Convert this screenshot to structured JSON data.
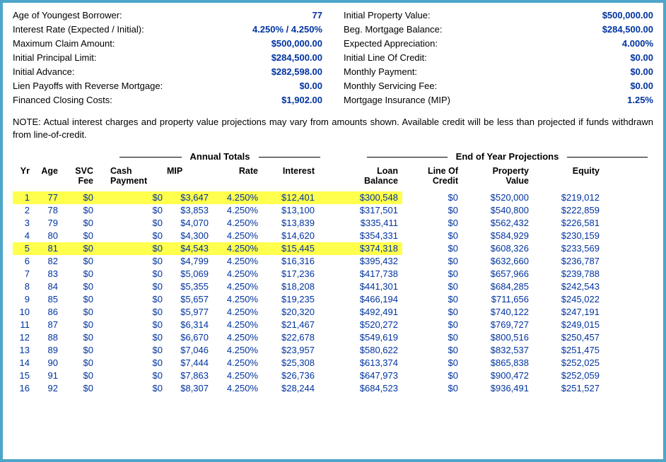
{
  "summary_left": [
    {
      "label": "Age of Youngest Borrower:",
      "value": "77"
    },
    {
      "label": "Interest Rate (Expected / Initial):",
      "value": "4.250%  /  4.250%"
    },
    {
      "label": "Maximum Claim Amount:",
      "value": "$500,000.00"
    },
    {
      "label": "Initial Principal Limit:",
      "value": "$284,500.00"
    },
    {
      "label": "Initial Advance:",
      "value": "$282,598.00"
    },
    {
      "label": "Lien Payoffs with Reverse Mortgage:",
      "value": "$0.00"
    },
    {
      "label": "Financed Closing Costs:",
      "value": "$1,902.00"
    }
  ],
  "summary_right": [
    {
      "label": "Initial Property Value:",
      "value": "$500,000.00"
    },
    {
      "label": "Beg. Mortgage Balance:",
      "value": "$284,500.00"
    },
    {
      "label": "Expected Appreciation:",
      "value": "4.000%"
    },
    {
      "label": "Initial Line Of Credit:",
      "value": "$0.00"
    },
    {
      "label": "Monthly Payment:",
      "value": "$0.00"
    },
    {
      "label": "Monthly Servicing Fee:",
      "value": "$0.00"
    },
    {
      "label": "Mortgage Insurance (MIP)",
      "value": "1.25%"
    }
  ],
  "note": "NOTE: Actual interest charges and property value projections may vary from amounts shown. Available credit will be less than projected if funds withdrawn from line-of-credit.",
  "group_a": "Annual Totals",
  "group_b": "End of Year Projections",
  "headers": {
    "yr": "Yr",
    "age": "Age",
    "svc1": "SVC",
    "svc2": "Fee",
    "cash1": "Cash",
    "cash2": "Payment",
    "mip": "MIP",
    "rate": "Rate",
    "int": "Interest",
    "lb1": "Loan",
    "lb2": "Balance",
    "loc1": "Line Of",
    "loc2": "Credit",
    "pv1": "Property",
    "pv2": "Value",
    "eq": "Equity"
  },
  "highlight_rows": [
    0,
    4
  ],
  "highlight_color": "#ffff4d",
  "value_color": "#0033a0",
  "border_color": "#4da6c9",
  "rows": [
    {
      "yr": "1",
      "age": "77",
      "svc": "$0",
      "cash": "$0",
      "mip": "$3,647",
      "rate": "4.250%",
      "int": "$12,401",
      "lb": "$300,548",
      "loc": "$0",
      "pv": "$520,000",
      "eq": "$219,012"
    },
    {
      "yr": "2",
      "age": "78",
      "svc": "$0",
      "cash": "$0",
      "mip": "$3,853",
      "rate": "4.250%",
      "int": "$13,100",
      "lb": "$317,501",
      "loc": "$0",
      "pv": "$540,800",
      "eq": "$222,859"
    },
    {
      "yr": "3",
      "age": "79",
      "svc": "$0",
      "cash": "$0",
      "mip": "$4,070",
      "rate": "4.250%",
      "int": "$13,839",
      "lb": "$335,411",
      "loc": "$0",
      "pv": "$562,432",
      "eq": "$226,581"
    },
    {
      "yr": "4",
      "age": "80",
      "svc": "$0",
      "cash": "$0",
      "mip": "$4,300",
      "rate": "4.250%",
      "int": "$14,620",
      "lb": "$354,331",
      "loc": "$0",
      "pv": "$584,929",
      "eq": "$230,159"
    },
    {
      "yr": "5",
      "age": "81",
      "svc": "$0",
      "cash": "$0",
      "mip": "$4,543",
      "rate": "4.250%",
      "int": "$15,445",
      "lb": "$374,318",
      "loc": "$0",
      "pv": "$608,326",
      "eq": "$233,569"
    },
    {
      "yr": "6",
      "age": "82",
      "svc": "$0",
      "cash": "$0",
      "mip": "$4,799",
      "rate": "4.250%",
      "int": "$16,316",
      "lb": "$395,432",
      "loc": "$0",
      "pv": "$632,660",
      "eq": "$236,787"
    },
    {
      "yr": "7",
      "age": "83",
      "svc": "$0",
      "cash": "$0",
      "mip": "$5,069",
      "rate": "4.250%",
      "int": "$17,236",
      "lb": "$417,738",
      "loc": "$0",
      "pv": "$657,966",
      "eq": "$239,788"
    },
    {
      "yr": "8",
      "age": "84",
      "svc": "$0",
      "cash": "$0",
      "mip": "$5,355",
      "rate": "4.250%",
      "int": "$18,208",
      "lb": "$441,301",
      "loc": "$0",
      "pv": "$684,285",
      "eq": "$242,543"
    },
    {
      "yr": "9",
      "age": "85",
      "svc": "$0",
      "cash": "$0",
      "mip": "$5,657",
      "rate": "4.250%",
      "int": "$19,235",
      "lb": "$466,194",
      "loc": "$0",
      "pv": "$711,656",
      "eq": "$245,022"
    },
    {
      "yr": "10",
      "age": "86",
      "svc": "$0",
      "cash": "$0",
      "mip": "$5,977",
      "rate": "4.250%",
      "int": "$20,320",
      "lb": "$492,491",
      "loc": "$0",
      "pv": "$740,122",
      "eq": "$247,191"
    },
    {
      "yr": "11",
      "age": "87",
      "svc": "$0",
      "cash": "$0",
      "mip": "$6,314",
      "rate": "4.250%",
      "int": "$21,467",
      "lb": "$520,272",
      "loc": "$0",
      "pv": "$769,727",
      "eq": "$249,015"
    },
    {
      "yr": "12",
      "age": "88",
      "svc": "$0",
      "cash": "$0",
      "mip": "$6,670",
      "rate": "4.250%",
      "int": "$22,678",
      "lb": "$549,619",
      "loc": "$0",
      "pv": "$800,516",
      "eq": "$250,457"
    },
    {
      "yr": "13",
      "age": "89",
      "svc": "$0",
      "cash": "$0",
      "mip": "$7,046",
      "rate": "4.250%",
      "int": "$23,957",
      "lb": "$580,622",
      "loc": "$0",
      "pv": "$832,537",
      "eq": "$251,475"
    },
    {
      "yr": "14",
      "age": "90",
      "svc": "$0",
      "cash": "$0",
      "mip": "$7,444",
      "rate": "4.250%",
      "int": "$25,308",
      "lb": "$613,374",
      "loc": "$0",
      "pv": "$865,838",
      "eq": "$252,025"
    },
    {
      "yr": "15",
      "age": "91",
      "svc": "$0",
      "cash": "$0",
      "mip": "$7,863",
      "rate": "4.250%",
      "int": "$26,736",
      "lb": "$647,973",
      "loc": "$0",
      "pv": "$900,472",
      "eq": "$252,059"
    },
    {
      "yr": "16",
      "age": "92",
      "svc": "$0",
      "cash": "$0",
      "mip": "$8,307",
      "rate": "4.250%",
      "int": "$28,244",
      "lb": "$684,523",
      "loc": "$0",
      "pv": "$936,491",
      "eq": "$251,527"
    }
  ]
}
